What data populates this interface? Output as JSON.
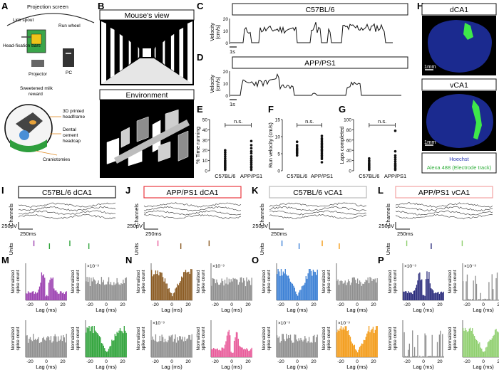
{
  "panel_labels": [
    "A",
    "B",
    "C",
    "D",
    "E",
    "F",
    "G",
    "H",
    "I",
    "J",
    "K",
    "L",
    "M",
    "N",
    "O",
    "P"
  ],
  "panel_a": {
    "projection_screen": "Projection screen",
    "lick_spout": "Lick spout",
    "run_wheel": "Run wheel",
    "head_fixation": "Head-fixation bars",
    "projector": "Projector",
    "pc": "PC",
    "sweetened": "Sweetened milk reward",
    "printed_headframe": "3D printed headframe",
    "dental_cement": "Dental cement headcap",
    "craniotomies": "Craniotomies"
  },
  "panel_b": {
    "mouse_view": "Mouse's view",
    "environment": "Environment"
  },
  "panel_c": {
    "title": "C57BL/6",
    "ylabel": "Velocity (cm/s)",
    "scale": "1s",
    "ticks": [
      "20",
      "10",
      "0"
    ]
  },
  "panel_d": {
    "title": "APP/PS1",
    "ylabel": "Velocity (cm/s)",
    "scale": "1s",
    "ticks": [
      "20",
      "10",
      "0"
    ]
  },
  "panel_h": {
    "dca1": "dCA1",
    "vca1": "vCA1",
    "scale": "1mm",
    "legend_hoechst": "Hoechst",
    "legend_alexa": "Alexa 488 (Electrode track)",
    "colors": {
      "tissue": "#1b2a8f",
      "track": "#3ee84a"
    }
  },
  "row_ijkl": {
    "titles": [
      "C57BL/6 dCA1",
      "APP/PS1 dCA1",
      "C57BL/6 vCA1",
      "APP/PS1 vCA1"
    ],
    "channels": "Channels",
    "units": "Units",
    "scale_v": "250μV",
    "scale_t": "250ms",
    "box_colors": [
      "#222222",
      "#e8393f",
      "#bbbbbb",
      "#f2a4a4"
    ]
  },
  "row_mnop": {
    "ylabel_line1": "Normalized",
    "ylabel_line2": "spike count",
    "xlabel": "Lag (ms)",
    "exponent": "×10⁻³",
    "xticks": [
      "-20",
      "0",
      "20"
    ],
    "colors": {
      "M": "#9b3fb0",
      "N": "#8a5a22",
      "O": "#3a7fd5",
      "P": "#2c2d7d",
      "green": "#2fa33a",
      "pink": "#e85b9a",
      "orange": "#f39b17",
      "lightgreen": "#8fcf6e",
      "gray": "#8f8f8f"
    }
  },
  "chart_data": [
    {
      "type": "scatter",
      "panel": "E",
      "ylabel": "% Time running",
      "categories": [
        "C57BL/6",
        "APP/PS1"
      ],
      "ylim": [
        0,
        50
      ],
      "yticks": [
        0,
        10,
        20,
        30,
        40,
        50
      ],
      "significance": "n.s.",
      "series": [
        {
          "name": "C57BL/6",
          "values": [
            1,
            2,
            3,
            4,
            5,
            6,
            7,
            8,
            9,
            10,
            12,
            14,
            16,
            18,
            20
          ]
        },
        {
          "name": "APP/PS1",
          "values": [
            1,
            3,
            4,
            6,
            8,
            10,
            12,
            14,
            17,
            19,
            22,
            25,
            29
          ]
        }
      ]
    },
    {
      "type": "scatter",
      "panel": "F",
      "ylabel": "Run velocity (cm/s)",
      "categories": [
        "C57BL/6",
        "APP/PS1"
      ],
      "ylim": [
        0,
        15
      ],
      "yticks": [
        0,
        5,
        10,
        15
      ],
      "significance": "n.s.",
      "series": [
        {
          "name": "C57BL/6",
          "values": [
            4.5,
            5,
            5.3,
            5.6,
            6,
            6.2,
            6.5,
            7,
            7.5,
            8.5
          ]
        },
        {
          "name": "APP/PS1",
          "values": [
            2.5,
            3.5,
            4,
            4.5,
            5,
            5.5,
            6,
            6.3,
            6.8,
            7.2,
            7.6,
            8,
            8.5,
            9,
            9.5,
            10.2
          ]
        }
      ]
    },
    {
      "type": "scatter",
      "panel": "G",
      "ylabel": "Laps completed",
      "categories": [
        "C57BL/6",
        "APP/PS1"
      ],
      "ylim": [
        0,
        100
      ],
      "yticks": [
        0,
        20,
        40,
        60,
        80,
        100
      ],
      "significance": "n.s.",
      "series": [
        {
          "name": "C57BL/6",
          "values": [
            2,
            4,
            6,
            8,
            10,
            12,
            14,
            17,
            20,
            24
          ]
        },
        {
          "name": "APP/PS1",
          "values": [
            2,
            5,
            8,
            11,
            14,
            18,
            22,
            26,
            30,
            38,
            78
          ]
        }
      ]
    }
  ]
}
